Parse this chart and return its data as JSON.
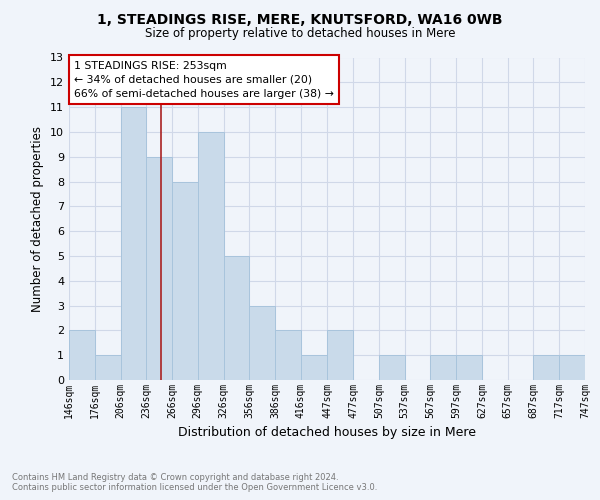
{
  "title": "1, STEADINGS RISE, MERE, KNUTSFORD, WA16 0WB",
  "subtitle": "Size of property relative to detached houses in Mere",
  "xlabel": "Distribution of detached houses by size in Mere",
  "ylabel": "Number of detached properties",
  "bin_edges": [
    146,
    176,
    206,
    236,
    266,
    296,
    326,
    356,
    386,
    416,
    447,
    477,
    507,
    537,
    567,
    597,
    627,
    657,
    687,
    717,
    747
  ],
  "bin_labels": [
    "146sqm",
    "176sqm",
    "206sqm",
    "236sqm",
    "266sqm",
    "296sqm",
    "326sqm",
    "356sqm",
    "386sqm",
    "416sqm",
    "447sqm",
    "477sqm",
    "507sqm",
    "537sqm",
    "567sqm",
    "597sqm",
    "627sqm",
    "657sqm",
    "687sqm",
    "717sqm",
    "747sqm"
  ],
  "counts": [
    2,
    1,
    11,
    9,
    8,
    10,
    5,
    3,
    2,
    1,
    2,
    0,
    1,
    0,
    1,
    1,
    0,
    0,
    1,
    1,
    0
  ],
  "bar_color": "#c9daea",
  "bar_edge_color": "#a8c4dc",
  "property_size": 253,
  "property_label": "1 STEADINGS RISE: 253sqm",
  "annotation_line1": "← 34% of detached houses are smaller (20)",
  "annotation_line2": "66% of semi-detached houses are larger (38) →",
  "annotation_box_color": "#ffffff",
  "annotation_box_edge": "#cc0000",
  "vline_color": "#aa2222",
  "ylim": [
    0,
    13
  ],
  "yticks": [
    0,
    1,
    2,
    3,
    4,
    5,
    6,
    7,
    8,
    9,
    10,
    11,
    12,
    13
  ],
  "footer_line1": "Contains HM Land Registry data © Crown copyright and database right 2024.",
  "footer_line2": "Contains public sector information licensed under the Open Government Licence v3.0.",
  "bg_color": "#f0f4fa",
  "plot_bg_color": "#f0f4fa",
  "grid_color": "#d0d8e8"
}
